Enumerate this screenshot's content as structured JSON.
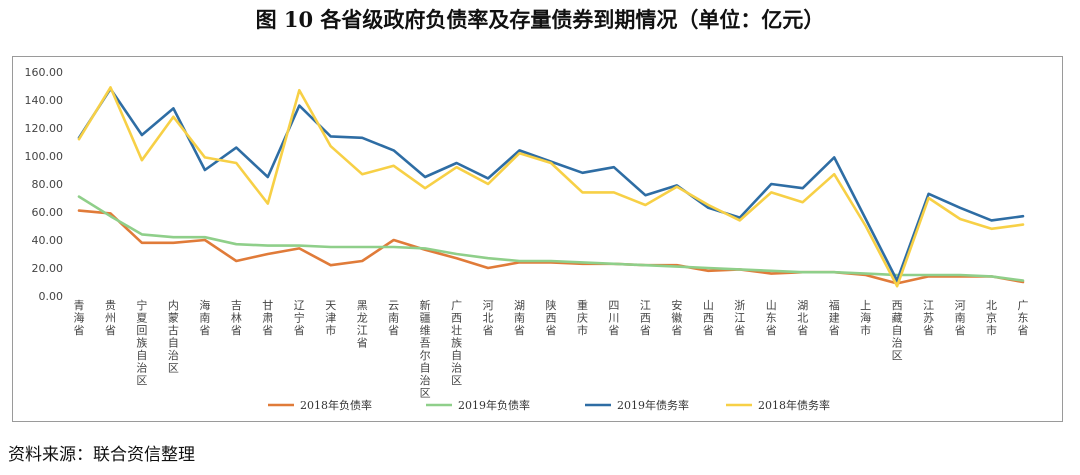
{
  "figure": {
    "title": "图 10   各省级政府负债率及存量债券到期情况（单位：亿元）",
    "source": "资料来源：联合资信整理"
  },
  "chart_data": {
    "type": "line",
    "categories": [
      "青海省",
      "贵州省",
      "宁夏回族自治区",
      "内蒙古自治区",
      "海南省",
      "吉林省",
      "甘肃省",
      "辽宁省",
      "天津市",
      "黑龙江省",
      "云南省",
      "新疆维吾尔自治区",
      "广西壮族自治区",
      "河北省",
      "湖南省",
      "陕西省",
      "重庆市",
      "四川省",
      "江西省",
      "安徽省",
      "山西省",
      "浙江省",
      "山东省",
      "湖北省",
      "福建省",
      "上海市",
      "西藏自治区",
      "江苏省",
      "河南省",
      "北京市",
      "广东省"
    ],
    "ylim": [
      0,
      160
    ],
    "yticks": [
      "0.00",
      "20.00",
      "40.00",
      "60.00",
      "80.00",
      "100.00",
      "120.00",
      "140.00",
      "160.00"
    ],
    "grid": false,
    "legend_position": "bottom",
    "series": [
      {
        "name": "2018年负债率",
        "color": "#e07b39",
        "values": [
          61,
          59,
          38,
          38,
          40,
          25,
          30,
          34,
          22,
          25,
          40,
          33,
          27,
          20,
          24,
          24,
          23,
          23,
          22,
          22,
          18,
          19,
          16,
          17,
          17,
          15,
          9,
          14,
          14,
          14,
          10
        ]
      },
      {
        "name": "2019年负债率",
        "color": "#8fcf8a",
        "values": [
          71,
          57,
          44,
          42,
          42,
          37,
          36,
          36,
          35,
          35,
          35,
          34,
          30,
          27,
          25,
          25,
          24,
          23,
          22,
          21,
          20,
          19,
          18,
          17,
          17,
          16,
          15,
          15,
          15,
          14,
          11
        ]
      },
      {
        "name": "2019年债务率",
        "color": "#2e6da4",
        "values": [
          113,
          148,
          115,
          134,
          90,
          106,
          85,
          136,
          114,
          113,
          104,
          85,
          95,
          84,
          104,
          96,
          88,
          92,
          72,
          79,
          63,
          56,
          80,
          77,
          99,
          55,
          11,
          73,
          63,
          54,
          57
        ]
      },
      {
        "name": "2018年债务率",
        "color": "#f7d046",
        "values": [
          112,
          149,
          97,
          128,
          99,
          95,
          66,
          147,
          107,
          87,
          93,
          77,
          92,
          80,
          102,
          95,
          74,
          74,
          65,
          78,
          65,
          54,
          74,
          67,
          87,
          50,
          7,
          70,
          55,
          48,
          51
        ]
      }
    ]
  }
}
